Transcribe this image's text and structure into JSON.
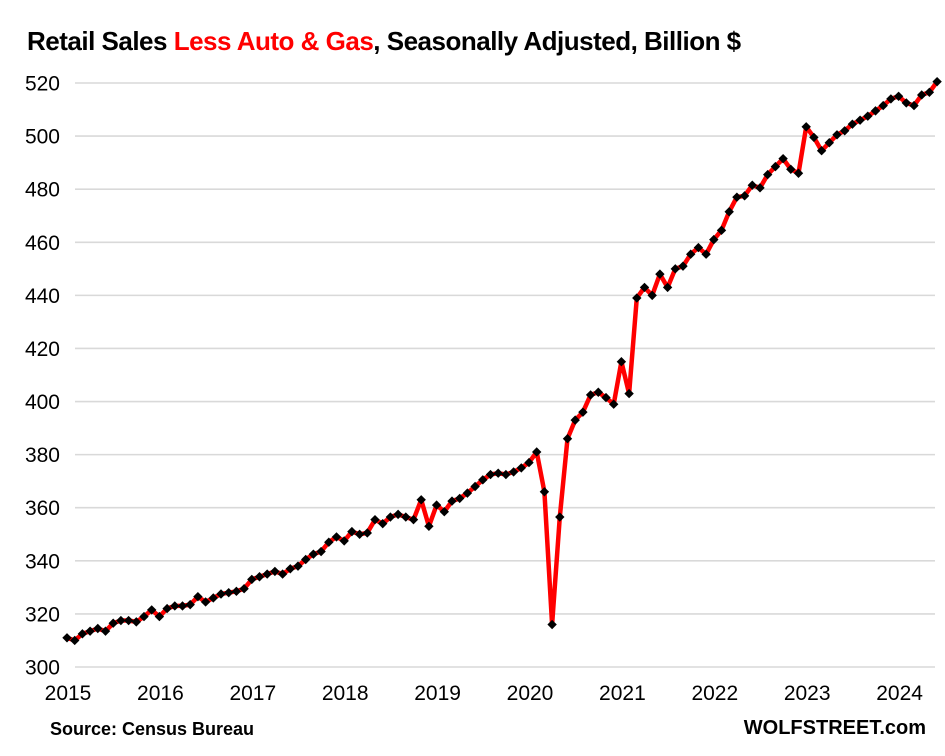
{
  "title": {
    "prefix": "Retail Sales ",
    "highlight": "Less Auto & Gas",
    "suffix": ", Seasonally Adjusted, Billion $"
  },
  "footer": {
    "source": "Source: Census Bureau",
    "site": "WOLFSTREET.com"
  },
  "colors": {
    "line": "#ff0000",
    "marker": "#000000",
    "grid": "#d9d9d9",
    "text": "#000000",
    "title_highlight": "#ff0000"
  },
  "chart_data": {
    "type": "line",
    "title": "Retail Sales Less Auto & Gas, Seasonally Adjusted, Billion $",
    "xlabel": "",
    "ylabel": "",
    "ylim": [
      300,
      520
    ],
    "y_ticks": [
      300,
      320,
      340,
      360,
      380,
      400,
      420,
      440,
      460,
      480,
      500,
      520
    ],
    "x_tick_labels": [
      "2015",
      "2016",
      "2017",
      "2018",
      "2019",
      "2020",
      "2021",
      "2022",
      "2023",
      "2024"
    ],
    "grid": true,
    "legend_position": "none",
    "marker": "diamond",
    "frequency": "monthly",
    "start_month": "2015-01",
    "end_month": "2024-06",
    "series": [
      {
        "name": "Retail sales less auto & gas, seasonally adjusted, billion $",
        "values": [
          311,
          310,
          312.5,
          313.5,
          314.5,
          313.5,
          316.5,
          317.5,
          317.5,
          317,
          319,
          321.5,
          319,
          322,
          323,
          323,
          323.5,
          326.5,
          324.5,
          326,
          327.5,
          328,
          328.5,
          329.5,
          333,
          334,
          335,
          336,
          335,
          337,
          338,
          340.5,
          342.5,
          343.5,
          347,
          349,
          347.5,
          351,
          350,
          350.5,
          355.5,
          354,
          356.5,
          357.5,
          356.5,
          355.5,
          363,
          353,
          361,
          358.5,
          362.5,
          363.5,
          365.5,
          368,
          370.5,
          372.5,
          373,
          372.5,
          373.5,
          375,
          377,
          381,
          366,
          316,
          356.5,
          386,
          393,
          396,
          402.5,
          403.5,
          401.5,
          399,
          415,
          403,
          439,
          443,
          440,
          448,
          443,
          450,
          451,
          455.5,
          458,
          455.5,
          461,
          464.5,
          471.5,
          477,
          477.5,
          481.5,
          480.5,
          485.5,
          488.5,
          491.5,
          487.5,
          486,
          503.5,
          499.5,
          494.5,
          497.5,
          500.5,
          502,
          504.5,
          506,
          507.5,
          509.5,
          511.5,
          514,
          515,
          512.5,
          511.5,
          515.5,
          516.5,
          520.5
        ]
      }
    ]
  }
}
